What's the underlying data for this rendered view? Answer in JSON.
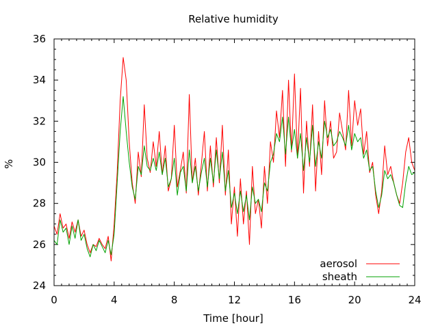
{
  "chart_data": {
    "type": "line",
    "title": "Relative humidity",
    "xlabel": "Time [hour]",
    "ylabel": "%",
    "xlim": [
      0,
      24
    ],
    "ylim": [
      24,
      36
    ],
    "x_ticks": [
      0,
      4,
      8,
      12,
      16,
      20,
      24
    ],
    "y_ticks": [
      24,
      26,
      28,
      30,
      32,
      34,
      36
    ],
    "x_tick_labels": [
      "0",
      "4",
      "8",
      "12",
      "16",
      "20",
      "24"
    ],
    "y_tick_labels": [
      "24",
      "26",
      "28",
      "30",
      "32",
      "34",
      "36"
    ],
    "grid": false,
    "legend_position": "bottom-right",
    "series": [
      {
        "name": "aerosol",
        "color": "#ff0000",
        "x": [
          0,
          0.2,
          0.4,
          0.6,
          0.8,
          1.0,
          1.2,
          1.4,
          1.6,
          1.8,
          2.0,
          2.2,
          2.4,
          2.6,
          2.8,
          3.0,
          3.2,
          3.4,
          3.6,
          3.8,
          4.0,
          4.2,
          4.4,
          4.6,
          4.8,
          5.0,
          5.2,
          5.4,
          5.6,
          5.8,
          6.0,
          6.2,
          6.4,
          6.6,
          6.8,
          7.0,
          7.2,
          7.4,
          7.6,
          7.8,
          8.0,
          8.2,
          8.4,
          8.6,
          8.8,
          9.0,
          9.2,
          9.4,
          9.6,
          9.8,
          10.0,
          10.2,
          10.4,
          10.6,
          10.8,
          11.0,
          11.2,
          11.4,
          11.6,
          11.8,
          12.0,
          12.2,
          12.4,
          12.6,
          12.8,
          13.0,
          13.2,
          13.4,
          13.6,
          13.8,
          14.0,
          14.2,
          14.4,
          14.6,
          14.8,
          15.0,
          15.2,
          15.4,
          15.6,
          15.8,
          16.0,
          16.2,
          16.4,
          16.6,
          16.8,
          17.0,
          17.2,
          17.4,
          17.6,
          17.8,
          18.0,
          18.2,
          18.4,
          18.6,
          18.8,
          19.0,
          19.2,
          19.4,
          19.6,
          19.8,
          20.0,
          20.2,
          20.4,
          20.6,
          20.8,
          21.0,
          21.2,
          21.4,
          21.6,
          21.8,
          22.0,
          22.2,
          22.4,
          22.6,
          22.8,
          23.0,
          23.2,
          23.4,
          23.6,
          23.8,
          24.0
        ],
        "values": [
          26.9,
          26.5,
          27.5,
          26.8,
          27.0,
          26.3,
          27.1,
          26.6,
          27.2,
          26.4,
          26.7,
          26.0,
          25.6,
          26.0,
          25.9,
          26.3,
          26.0,
          25.8,
          26.4,
          25.2,
          27.0,
          29.5,
          33.0,
          35.1,
          34.0,
          31.0,
          29.0,
          28.0,
          30.5,
          29.3,
          32.8,
          30.2,
          29.5,
          31.0,
          29.8,
          31.5,
          29.4,
          30.8,
          28.6,
          29.2,
          31.8,
          28.8,
          29.6,
          30.5,
          28.5,
          33.3,
          29.0,
          30.2,
          28.4,
          29.9,
          31.5,
          28.6,
          30.8,
          28.8,
          31.2,
          29.0,
          31.8,
          28.4,
          30.6,
          27.0,
          28.8,
          26.4,
          29.2,
          27.0,
          28.6,
          26.0,
          29.8,
          27.5,
          28.2,
          26.8,
          29.8,
          28.0,
          31.0,
          30.0,
          32.5,
          31.2,
          33.5,
          29.8,
          34.0,
          30.5,
          34.3,
          30.2,
          33.6,
          28.5,
          32.0,
          29.8,
          32.8,
          28.6,
          31.5,
          29.4,
          33.0,
          30.8,
          32.0,
          30.2,
          30.5,
          32.4,
          31.5,
          30.6,
          33.5,
          30.8,
          33.0,
          31.8,
          32.6,
          30.4,
          31.5,
          29.5,
          30.0,
          28.4,
          27.5,
          28.6,
          30.8,
          29.4,
          29.8,
          29.0,
          28.4,
          28.0,
          29.0,
          30.5,
          31.2,
          30.0,
          29.6
        ]
      },
      {
        "name": "sheath",
        "color": "#00a000",
        "x": [
          0,
          0.2,
          0.4,
          0.6,
          0.8,
          1.0,
          1.2,
          1.4,
          1.6,
          1.8,
          2.0,
          2.2,
          2.4,
          2.6,
          2.8,
          3.0,
          3.2,
          3.4,
          3.6,
          3.8,
          4.0,
          4.2,
          4.4,
          4.6,
          4.8,
          5.0,
          5.2,
          5.4,
          5.6,
          5.8,
          6.0,
          6.2,
          6.4,
          6.6,
          6.8,
          7.0,
          7.2,
          7.4,
          7.6,
          7.8,
          8.0,
          8.2,
          8.4,
          8.6,
          8.8,
          9.0,
          9.2,
          9.4,
          9.6,
          9.8,
          10.0,
          10.2,
          10.4,
          10.6,
          10.8,
          11.0,
          11.2,
          11.4,
          11.6,
          11.8,
          12.0,
          12.2,
          12.4,
          12.6,
          12.8,
          13.0,
          13.2,
          13.4,
          13.6,
          13.8,
          14.0,
          14.2,
          14.4,
          14.6,
          14.8,
          15.0,
          15.2,
          15.4,
          15.6,
          15.8,
          16.0,
          16.2,
          16.4,
          16.6,
          16.8,
          17.0,
          17.2,
          17.4,
          17.6,
          17.8,
          18.0,
          18.2,
          18.4,
          18.6,
          18.8,
          19.0,
          19.2,
          19.4,
          19.6,
          19.8,
          20.0,
          20.2,
          20.4,
          20.6,
          20.8,
          21.0,
          21.2,
          21.4,
          21.6,
          21.8,
          22.0,
          22.2,
          22.4,
          22.6,
          22.8,
          23.0,
          23.2,
          23.4,
          23.6,
          23.8,
          24.0
        ],
        "values": [
          26.2,
          26.0,
          27.2,
          26.6,
          26.8,
          26.0,
          26.9,
          26.3,
          27.2,
          26.2,
          26.5,
          25.8,
          25.4,
          26.0,
          25.7,
          26.2,
          25.9,
          25.6,
          26.2,
          25.5,
          26.5,
          29.0,
          31.5,
          33.2,
          31.5,
          30.0,
          28.8,
          28.2,
          29.8,
          29.4,
          30.8,
          29.8,
          29.6,
          30.2,
          29.6,
          30.5,
          29.4,
          30.2,
          28.8,
          29.2,
          30.2,
          28.4,
          29.5,
          29.8,
          28.6,
          30.6,
          29.0,
          29.8,
          28.6,
          29.5,
          30.2,
          28.8,
          30.2,
          29.0,
          30.6,
          29.2,
          30.5,
          28.6,
          29.6,
          27.8,
          28.5,
          27.5,
          28.6,
          27.6,
          28.4,
          27.2,
          28.8,
          28.0,
          28.2,
          27.6,
          29.0,
          28.6,
          30.0,
          30.4,
          31.4,
          31.0,
          32.2,
          30.4,
          32.2,
          30.6,
          31.6,
          30.2,
          31.4,
          29.6,
          31.2,
          30.0,
          31.8,
          29.8,
          31.0,
          30.2,
          32.0,
          31.2,
          31.6,
          30.8,
          31.0,
          31.5,
          31.2,
          30.8,
          31.8,
          30.6,
          31.4,
          31.0,
          31.2,
          30.2,
          30.6,
          29.6,
          29.8,
          28.6,
          27.8,
          28.4,
          29.6,
          29.2,
          29.4,
          29.0,
          28.4,
          27.9,
          27.8,
          29.0,
          29.8,
          29.4,
          29.5
        ]
      }
    ]
  }
}
